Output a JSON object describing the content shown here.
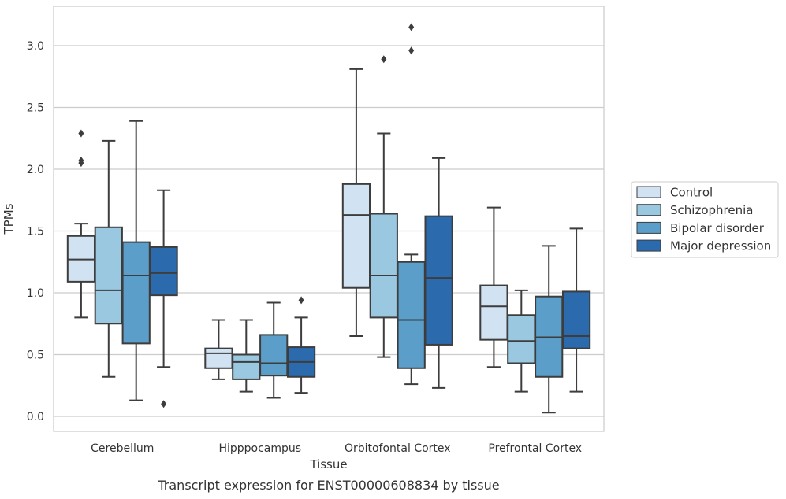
{
  "chart_data": {
    "type": "box",
    "caption": "Transcript expression for ENST00000608834 by tissue",
    "xlabel": "Tissue",
    "ylabel": "TPMs",
    "ylim": [
      -0.12,
      3.32
    ],
    "yticks": [
      0.0,
      0.5,
      1.0,
      1.5,
      2.0,
      2.5,
      3.0
    ],
    "ytick_labels": [
      "0.0",
      "0.5",
      "1.0",
      "1.5",
      "2.0",
      "2.5",
      "3.0"
    ],
    "grid": "horizontal",
    "legend_position": "right",
    "categories": [
      "Cerebellum",
      "Hipppocampus",
      "Orbitofontal Cortex",
      "Prefrontal Cortex"
    ],
    "series": [
      {
        "name": "Control",
        "color": "#d1e2f2",
        "boxes": [
          {
            "whislo": 0.8,
            "q1": 1.09,
            "med": 1.27,
            "q3": 1.46,
            "whishi": 1.56,
            "fliers": [
              2.05,
              2.07,
              2.29
            ]
          },
          {
            "whislo": 0.3,
            "q1": 0.39,
            "med": 0.51,
            "q3": 0.55,
            "whishi": 0.78,
            "fliers": []
          },
          {
            "whislo": 0.65,
            "q1": 1.04,
            "med": 1.63,
            "q3": 1.88,
            "whishi": 2.81,
            "fliers": []
          },
          {
            "whislo": 0.4,
            "q1": 0.62,
            "med": 0.89,
            "q3": 1.06,
            "whishi": 1.69,
            "fliers": []
          }
        ]
      },
      {
        "name": "Schizophrenia",
        "color": "#9ac8e0",
        "boxes": [
          {
            "whislo": 0.32,
            "q1": 0.75,
            "med": 1.02,
            "q3": 1.53,
            "whishi": 2.23,
            "fliers": []
          },
          {
            "whislo": 0.2,
            "q1": 0.3,
            "med": 0.44,
            "q3": 0.5,
            "whishi": 0.78,
            "fliers": []
          },
          {
            "whislo": 0.48,
            "q1": 0.8,
            "med": 1.14,
            "q3": 1.64,
            "whishi": 2.29,
            "fliers": [
              2.89
            ]
          },
          {
            "whislo": 0.2,
            "q1": 0.43,
            "med": 0.61,
            "q3": 0.82,
            "whishi": 1.02,
            "fliers": []
          }
        ]
      },
      {
        "name": "Bipolar disorder",
        "color": "#5a9ec9",
        "boxes": [
          {
            "whislo": 0.13,
            "q1": 0.59,
            "med": 1.14,
            "q3": 1.41,
            "whishi": 2.39,
            "fliers": []
          },
          {
            "whislo": 0.15,
            "q1": 0.33,
            "med": 0.43,
            "q3": 0.66,
            "whishi": 0.92,
            "fliers": []
          },
          {
            "whislo": 0.26,
            "q1": 0.39,
            "med": 0.78,
            "q3": 1.25,
            "whishi": 1.31,
            "fliers": [
              2.96,
              3.15
            ]
          },
          {
            "whislo": 0.03,
            "q1": 0.32,
            "med": 0.64,
            "q3": 0.97,
            "whishi": 1.38,
            "fliers": []
          }
        ]
      },
      {
        "name": "Major depression",
        "color": "#2a6aad",
        "boxes": [
          {
            "whislo": 0.4,
            "q1": 0.98,
            "med": 1.16,
            "q3": 1.37,
            "whishi": 1.83,
            "fliers": [
              0.1
            ]
          },
          {
            "whislo": 0.19,
            "q1": 0.32,
            "med": 0.44,
            "q3": 0.56,
            "whishi": 0.8,
            "fliers": [
              0.94
            ]
          },
          {
            "whislo": 0.23,
            "q1": 0.58,
            "med": 1.12,
            "q3": 1.62,
            "whishi": 2.09,
            "fliers": []
          },
          {
            "whislo": 0.2,
            "q1": 0.55,
            "med": 0.65,
            "q3": 1.01,
            "whishi": 1.52,
            "fliers": []
          }
        ]
      }
    ]
  }
}
